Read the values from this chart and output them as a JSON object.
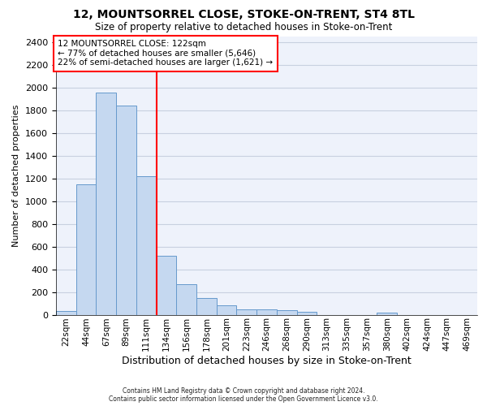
{
  "title1": "12, MOUNTSORREL CLOSE, STOKE-ON-TRENT, ST4 8TL",
  "title2": "Size of property relative to detached houses in Stoke-on-Trent",
  "xlabel": "Distribution of detached houses by size in Stoke-on-Trent",
  "ylabel": "Number of detached properties",
  "categories": [
    "22sqm",
    "44sqm",
    "67sqm",
    "89sqm",
    "111sqm",
    "134sqm",
    "156sqm",
    "178sqm",
    "201sqm",
    "223sqm",
    "246sqm",
    "268sqm",
    "290sqm",
    "313sqm",
    "335sqm",
    "357sqm",
    "380sqm",
    "402sqm",
    "424sqm",
    "447sqm",
    "469sqm"
  ],
  "values": [
    30,
    1150,
    1960,
    1840,
    1220,
    520,
    265,
    150,
    80,
    50,
    45,
    40,
    25,
    0,
    0,
    0,
    15,
    0,
    0,
    0,
    0
  ],
  "bar_color": "#c5d8f0",
  "bar_edge_color": "#6699cc",
  "vline_pos": 4.5,
  "annotation_line1": "12 MOUNTSORREL CLOSE: 122sqm",
  "annotation_line2": "← 77% of detached houses are smaller (5,646)",
  "annotation_line3": "22% of semi-detached houses are larger (1,621) →",
  "ylim_max": 2450,
  "yticks": [
    0,
    200,
    400,
    600,
    800,
    1000,
    1200,
    1400,
    1600,
    1800,
    2000,
    2200,
    2400
  ],
  "footer_line1": "Contains HM Land Registry data © Crown copyright and database right 2024.",
  "footer_line2": "Contains public sector information licensed under the Open Government Licence v3.0.",
  "bg_color": "#eef2fb",
  "grid_color": "#c8d0e0"
}
